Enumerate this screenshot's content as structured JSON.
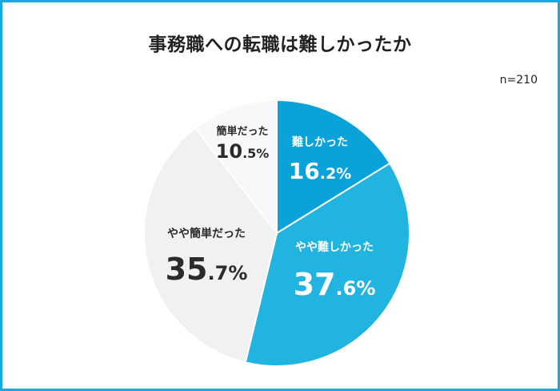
{
  "title": "事務職への転職は難しかったか",
  "sample_size": "n=210",
  "colors": {
    "border": "#1aa7d9",
    "slice_1": "#0aa2d8",
    "slice_2": "#21b4e0",
    "slice_3": "#f1f1f1",
    "slice_4": "#f8f8f8",
    "text_dark": "#2b2b2b",
    "text_light": "#ffffff"
  },
  "chart_data": {
    "type": "pie",
    "start_angle_deg": 0,
    "direction": "clockwise",
    "slices": [
      {
        "label": "難しかった",
        "value": 16.2,
        "int": "16",
        "dec": ".2%",
        "color": "#0aa2d8",
        "text_color": "#ffffff"
      },
      {
        "label": "やや難しかった",
        "value": 37.6,
        "int": "37",
        "dec": ".6%",
        "color": "#21b4e0",
        "text_color": "#ffffff"
      },
      {
        "label": "やや簡単だった",
        "value": 35.7,
        "int": "35",
        "dec": ".7%",
        "color": "#f1f1f1",
        "text_color": "#2b2b2b"
      },
      {
        "label": "簡単だった",
        "value": 10.5,
        "int": "10",
        "dec": ".5%",
        "color": "#f8f8f8",
        "text_color": "#2b2b2b"
      }
    ]
  }
}
